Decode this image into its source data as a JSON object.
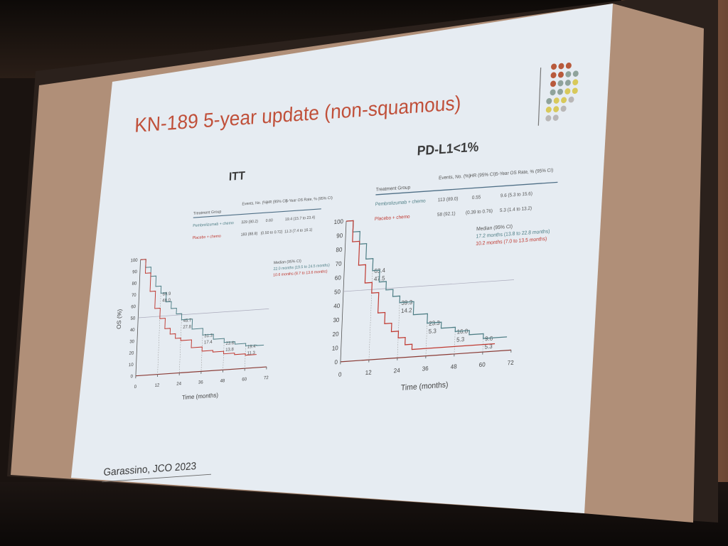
{
  "slide": {
    "title": "KN-189 5-year update (non-squamous)",
    "citation": "Garassino, JCO 2023",
    "colors": {
      "title": "#c0503a",
      "chemo_line": "#c03a32",
      "pembro_line": "#4f7f86",
      "dots": [
        "#b85a3c",
        "#8fa39b",
        "#d8c95a",
        "#b9b7b7"
      ]
    }
  },
  "panels": [
    {
      "heading": "ITT",
      "table": {
        "headers": [
          "Treatment Group",
          "Events, No. (%)",
          "HR (95% CI)",
          "5-Year OS Rate, % (95% CI)"
        ],
        "rows": [
          [
            "Pembrolizumab + chemo",
            "329 (80.2)",
            "0.60",
            "19.4 (15.7 to 23.4)"
          ],
          [
            "Placebo + chemo",
            "183 (88.8)",
            "(0.50 to 0.72)",
            "11.3 (7.4 to 16.1)"
          ]
        ]
      },
      "median": {
        "header": "Median (95% CI)",
        "lines": [
          "22.0 months (19.5 to 24.5 months)",
          "10.6 months (8.7 to 13.6 months)"
        ]
      }
    },
    {
      "heading": "PD-L1<1%",
      "table": {
        "headers": [
          "Treatment Group",
          "Events, No. (%)",
          "HR (95% CI)",
          "5-Year OS Rate, % (95% CI)"
        ],
        "rows": [
          [
            "Pembrolizumab + chemo",
            "113 (89.0)",
            "0.55",
            "9.6 (5.3 to 15.6)"
          ],
          [
            "Placebo + chemo",
            "58 (92.1)",
            "(0.39 to 0.76)",
            "5.3 (1.4 to 13.2)"
          ]
        ]
      },
      "median": {
        "header": "Median (95% CI)",
        "lines": [
          "17.2 months (13.8 to 22.8 months)",
          "10.2 months (7.0 to 13.5 months)"
        ]
      }
    }
  ],
  "chart_data": [
    {
      "type": "line",
      "xlabel": "Time (months)",
      "ylabel": "OS (%)",
      "xlim": [
        0,
        72
      ],
      "ylim": [
        0,
        100
      ],
      "xticks": [
        0,
        12,
        24,
        36,
        48,
        60,
        72
      ],
      "yticks": [
        0,
        10,
        20,
        30,
        40,
        50,
        60,
        70,
        80,
        90,
        100
      ],
      "series": [
        {
          "name": "Pembrolizumab + chemo",
          "x": [
            0,
            3,
            6,
            9,
            12,
            15,
            18,
            21,
            24,
            30,
            36,
            42,
            48,
            54,
            60,
            66,
            70
          ],
          "y": [
            100,
            93,
            85,
            76,
            69.9,
            62,
            56,
            51,
            45.7,
            37,
            31.3,
            27,
            23.6,
            21.5,
            19.4,
            19,
            19
          ]
        },
        {
          "name": "Placebo + chemo",
          "x": [
            0,
            3,
            6,
            9,
            12,
            15,
            18,
            21,
            24,
            30,
            36,
            42,
            48,
            54,
            60,
            66
          ],
          "y": [
            100,
            88,
            72,
            57,
            48.0,
            39,
            34,
            30,
            27.8,
            21,
            17.4,
            16,
            13.8,
            12.5,
            11.3,
            11
          ]
        }
      ],
      "annotations": [
        {
          "x": 12,
          "labels": [
            "69.9",
            "48.0"
          ]
        },
        {
          "x": 24,
          "labels": [
            "45.7",
            "27.8"
          ]
        },
        {
          "x": 36,
          "labels": [
            "31.3",
            "17.4"
          ]
        },
        {
          "x": 48,
          "labels": [
            "23.6",
            "13.8"
          ]
        },
        {
          "x": 60,
          "labels": [
            "19.4",
            "11.3"
          ]
        }
      ]
    },
    {
      "type": "line",
      "xlabel": "Time (months)",
      "ylabel": "",
      "xlim": [
        0,
        72
      ],
      "ylim": [
        0,
        100
      ],
      "xticks": [
        0,
        12,
        24,
        36,
        48,
        60,
        72
      ],
      "yticks": [
        0,
        10,
        20,
        30,
        40,
        50,
        60,
        70,
        80,
        90,
        100
      ],
      "series": [
        {
          "name": "Pembrolizumab + chemo",
          "x": [
            0,
            3,
            6,
            9,
            12,
            15,
            18,
            21,
            24,
            30,
            36,
            42,
            48,
            54,
            60,
            66,
            70
          ],
          "y": [
            100,
            92,
            83,
            72,
            63.4,
            55,
            49,
            44,
            39.3,
            30,
            23.3,
            19,
            16.0,
            13,
            9.6,
            9.6,
            9.6
          ]
        },
        {
          "name": "Placebo + chemo",
          "x": [
            0,
            3,
            6,
            9,
            12,
            15,
            18,
            21,
            24,
            27,
            30,
            36,
            48,
            60,
            65
          ],
          "y": [
            100,
            85,
            68,
            55,
            47.5,
            33,
            25,
            19,
            14.2,
            9,
            5.3,
            5.3,
            5.3,
            5.3,
            5.3
          ]
        }
      ],
      "annotations": [
        {
          "x": 12,
          "labels": [
            "63.4",
            "47.5"
          ]
        },
        {
          "x": 24,
          "labels": [
            "39.3",
            "14.2"
          ]
        },
        {
          "x": 36,
          "labels": [
            "23.3",
            "5.3"
          ]
        },
        {
          "x": 48,
          "labels": [
            "16.0",
            "5.3"
          ]
        },
        {
          "x": 60,
          "labels": [
            "9.6",
            "5.3"
          ]
        }
      ]
    }
  ]
}
